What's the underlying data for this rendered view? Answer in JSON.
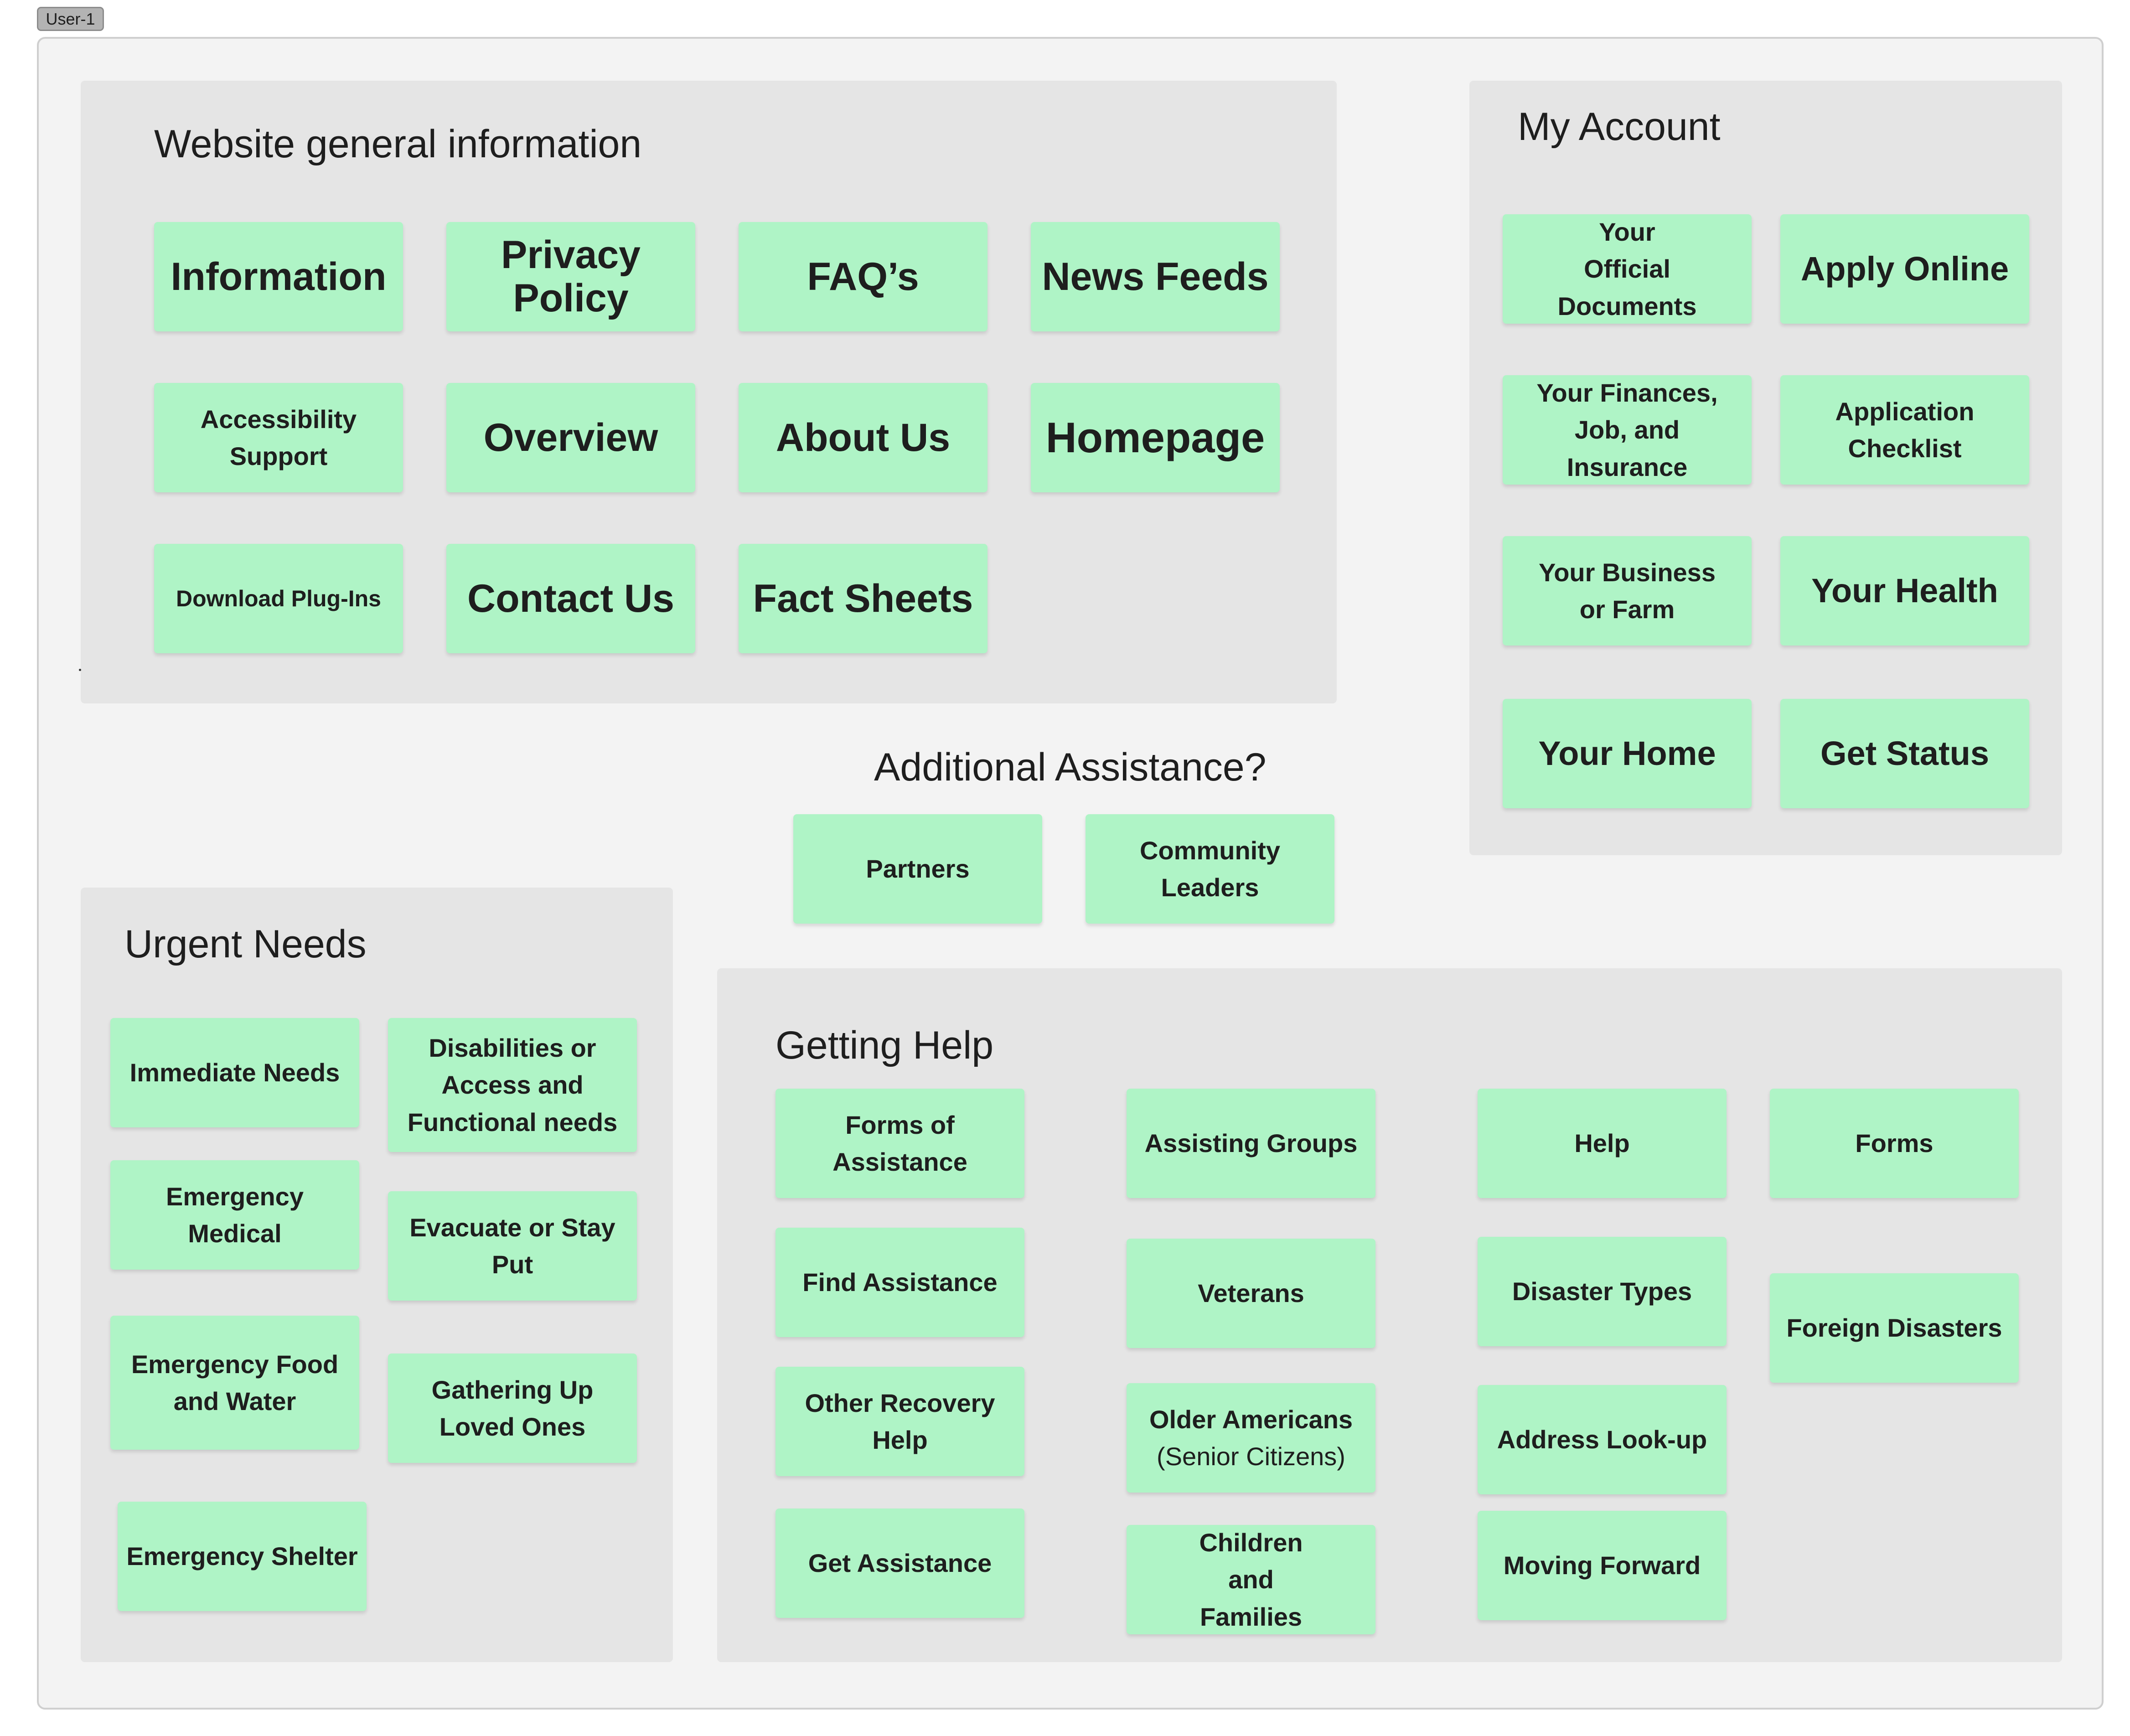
{
  "user_tag": "User-1",
  "sections": {
    "website": {
      "title": "Website general information",
      "items": [
        "Information",
        "Privacy Policy",
        "FAQ’s",
        "News Feeds",
        "Accessibility Support",
        "Overview",
        "About Us",
        "Homepage",
        "Download Plug-Ins",
        "Contact Us",
        "Fact Sheets"
      ]
    },
    "account": {
      "title": "My Account",
      "items": [
        "Your Official Documents",
        "Apply Online",
        "Your Finances, Job, and Insurance",
        "Application Checklist",
        "Your Business or Farm",
        "Your Health",
        "Your Home",
        "Get Status"
      ]
    },
    "additional": {
      "title": "Additional Assistance?",
      "items": [
        "Partners",
        "Community Leaders"
      ]
    },
    "urgent": {
      "title": "Urgent Needs",
      "items": [
        "Immediate Needs",
        "Disabilities or Access and Functional needs",
        "Emergency Medical",
        "Evacuate or Stay Put",
        "Emergency Food and Water",
        "Gathering Up Loved Ones",
        "Emergency Shelter"
      ]
    },
    "getting_help": {
      "title": "Getting Help",
      "items": [
        "Forms of Assistance",
        "Assisting Groups",
        "Help",
        "Forms",
        "Find Assistance",
        "Veterans",
        "Disaster Types",
        "Foreign Disasters",
        "Other Recovery Help",
        "Older Americans",
        "(Senior Citizens)",
        "Address Look-up",
        "Get Assistance",
        "Children and Families",
        "Moving Forward"
      ]
    }
  },
  "colors": {
    "canvas": "#f3f3f3",
    "section": "#e5e5e5",
    "card": "#aff4c6",
    "text": "#1e1e1e"
  }
}
